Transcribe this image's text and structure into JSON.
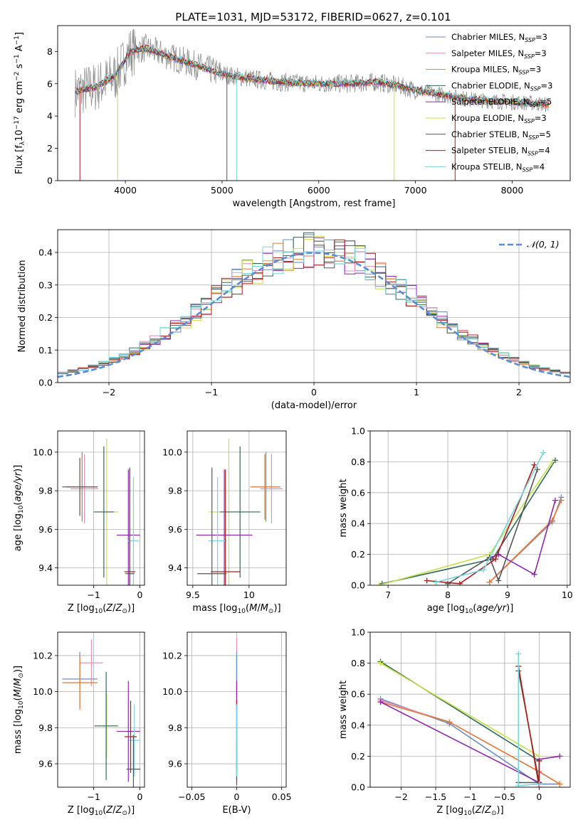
{
  "figure_title": "PLATE=1031, MJD=53172, FIBERID=0627, z=0.101",
  "colors": {
    "chabrier_miles": "#6c8ebf",
    "salpeter_miles": "#e58fb8",
    "kroupa_miles": "#e07b39",
    "chabrier_elodie": "#2f6b5a",
    "salpeter_elodie": "#8e2aa8",
    "kroupa_elodie": "#c6e04a",
    "chabrier_stelib": "#555555",
    "salpeter_stelib": "#b01c1c",
    "kroupa_stelib": "#76d6dd",
    "normal_curve": "#5b8bd6",
    "grid": "#b0b0b0"
  },
  "legend_spectrum": [
    {
      "name": "Chabrier MILES",
      "nssp": "3",
      "color_key": "chabrier_miles"
    },
    {
      "name": "Salpeter MILES",
      "nssp": "3",
      "color_key": "salpeter_miles"
    },
    {
      "name": "Kroupa MILES",
      "nssp": "3",
      "color_key": "kroupa_miles"
    },
    {
      "name": "Chabrier ELODIE",
      "nssp": "3",
      "color_key": "chabrier_elodie"
    },
    {
      "name": "Salpeter ELODIE",
      "nssp": "5",
      "color_key": "salpeter_elodie"
    },
    {
      "name": "Kroupa ELODIE",
      "nssp": "3",
      "color_key": "kroupa_elodie"
    },
    {
      "name": "Chabrier STELIB",
      "nssp": "5",
      "color_key": "chabrier_stelib"
    },
    {
      "name": "Salpeter STELIB",
      "nssp": "4",
      "color_key": "salpeter_stelib"
    },
    {
      "name": "Kroupa STELIB",
      "nssp": "4",
      "color_key": "kroupa_stelib"
    }
  ],
  "legend_residual": {
    "label": "𝒩(0, 1)"
  },
  "chart_data": [
    {
      "id": "spectrum",
      "type": "line",
      "title": "PLATE=1031, MJD=53172, FIBERID=0627, z=0.101",
      "xlabel": "wavelength [Angstrom, rest frame]",
      "ylabel": "Flux [f",
      "xlim": [
        3300,
        8600
      ],
      "ylim": [
        0,
        9.6
      ],
      "xticks": [
        4000,
        5000,
        6000,
        7000,
        8000
      ],
      "yticks": [
        0,
        2,
        4,
        6,
        8
      ],
      "data_range": [
        3480,
        8380
      ],
      "continuum_anchor_x": [
        3480,
        3700,
        3900,
        4050,
        4200,
        4400,
        4600,
        4800,
        5000,
        5300,
        5600,
        6000,
        6300,
        6600,
        6800,
        7000,
        7300,
        7600,
        7900,
        8200,
        8380
      ],
      "continuum_anchor_y": [
        5.5,
        5.8,
        6.5,
        8.0,
        8.2,
        7.8,
        7.4,
        7.0,
        6.6,
        6.3,
        6.1,
        6.0,
        6.0,
        6.1,
        5.9,
        5.6,
        5.3,
        5.0,
        4.9,
        4.8,
        4.7
      ]
    },
    {
      "id": "residuals",
      "type": "histogram",
      "xlabel": "(data-model)/error",
      "ylabel": "Normed distribution",
      "xlim": [
        -2.5,
        2.5
      ],
      "ylim": [
        0,
        0.47
      ],
      "xticks": [
        -2,
        -1,
        0,
        1,
        2
      ],
      "yticks": [
        0.0,
        0.1,
        0.2,
        0.3,
        0.4
      ],
      "bin_width": 0.1,
      "curve": "normal(0,1)"
    },
    {
      "id": "age_vs_Z",
      "type": "errorbar",
      "xlabel": "Z [log",
      "ylabel": "age  [log",
      "xlim": [
        -1.78,
        0.1
      ],
      "ylim": [
        9.31,
        10.11
      ],
      "xticks": [
        -1,
        0
      ],
      "yticks": [
        9.4,
        9.6,
        9.8,
        10.0
      ],
      "points": [
        {
          "c": "chabrier_miles",
          "x": -1.25,
          "xe": 0.34,
          "y": 9.82,
          "ye": 0.18
        },
        {
          "c": "salpeter_miles",
          "x": -1.2,
          "xe": 0.3,
          "y": 9.81,
          "ye": 0.18
        },
        {
          "c": "kroupa_miles",
          "x": -1.25,
          "xe": 0.34,
          "y": 9.82,
          "ye": 0.17
        },
        {
          "c": "chabrier_stelib",
          "x": -1.3,
          "xe": 0.38,
          "y": 9.82,
          "ye": 0.15
        },
        {
          "c": "kroupa_elodie",
          "x": -0.72,
          "xe": 0.25,
          "y": 9.69,
          "ye": 0.38
        },
        {
          "c": "chabrier_elodie",
          "x": -0.78,
          "xe": 0.22,
          "y": 9.69,
          "ye": 0.34
        },
        {
          "c": "salpeter_elodie",
          "x": -0.25,
          "xe": 0.25,
          "y": 9.57,
          "ye": 0.34
        },
        {
          "c": "kroupa_stelib",
          "x": -0.14,
          "xe": 0.12,
          "y": 9.54,
          "ye": 0.33
        },
        {
          "c": "salpeter_stelib",
          "x": -0.22,
          "xe": 0.12,
          "y": 9.38,
          "ye": 0.53
        },
        {
          "c": "chabrier_stelib",
          "x": -0.22,
          "xe": 0.1,
          "y": 9.37,
          "ye": 0.55
        }
      ]
    },
    {
      "id": "age_vs_mass",
      "type": "errorbar",
      "xlabel": "mass [log",
      "ylabel": "",
      "xlim": [
        9.45,
        10.33
      ],
      "ylim": [
        9.31,
        10.11
      ],
      "xticks": [
        9.5,
        10.0
      ],
      "yticks": [
        9.4,
        9.6,
        9.8,
        10.0
      ],
      "points": [
        {
          "c": "chabrier_miles",
          "x": 10.15,
          "xe": 0.13,
          "y": 9.82,
          "ye": 0.18
        },
        {
          "c": "salpeter_miles",
          "x": 10.2,
          "xe": 0.1,
          "y": 9.81,
          "ye": 0.18
        },
        {
          "c": "kroupa_miles",
          "x": 10.14,
          "xe": 0.13,
          "y": 9.82,
          "ye": 0.17
        },
        {
          "c": "kroupa_elodie",
          "x": 9.82,
          "xe": 0.18,
          "y": 9.69,
          "ye": 0.38
        },
        {
          "c": "chabrier_elodie",
          "x": 9.92,
          "xe": 0.18,
          "y": 9.69,
          "ye": 0.34
        },
        {
          "c": "salpeter_elodie",
          "x": 9.78,
          "xe": 0.25,
          "y": 9.57,
          "ye": 0.34
        },
        {
          "c": "kroupa_stelib",
          "x": 9.72,
          "xe": 0.08,
          "y": 9.54,
          "ye": 0.33
        },
        {
          "c": "salpeter_stelib",
          "x": 9.79,
          "xe": 0.13,
          "y": 9.38,
          "ye": 0.53
        },
        {
          "c": "chabrier_stelib",
          "x": 9.67,
          "xe": 0.13,
          "y": 9.37,
          "ye": 0.55
        }
      ]
    },
    {
      "id": "weight_vs_age",
      "type": "line",
      "xlabel": "age  [log",
      "ylabel": "mass weight",
      "xlim": [
        6.7,
        10.05
      ],
      "ylim": [
        0,
        1.0
      ],
      "xticks": [
        7,
        8,
        9,
        10
      ],
      "yticks": [
        0.0,
        0.2,
        0.4,
        0.6,
        0.8,
        1.0
      ],
      "series": [
        {
          "c": "chabrier_miles",
          "x": [
            8.7,
            9.75,
            9.9
          ],
          "y": [
            0.02,
            0.41,
            0.57
          ]
        },
        {
          "c": "salpeter_miles",
          "x": [
            8.7,
            9.75,
            9.9
          ],
          "y": [
            0.02,
            0.42,
            0.55
          ]
        },
        {
          "c": "kroupa_miles",
          "x": [
            8.7,
            9.75,
            9.9
          ],
          "y": [
            0.02,
            0.42,
            0.55
          ]
        },
        {
          "c": "chabrier_elodie",
          "x": [
            6.9,
            8.75,
            9.8
          ],
          "y": [
            0.01,
            0.17,
            0.81
          ]
        },
        {
          "c": "salpeter_elodie",
          "x": [
            8.72,
            8.85,
            9.45,
            9.8
          ],
          "y": [
            0.18,
            0.2,
            0.07,
            0.55
          ]
        },
        {
          "c": "kroupa_elodie",
          "x": [
            6.85,
            8.7,
            9.75
          ],
          "y": [
            0.0,
            0.2,
            0.8
          ]
        },
        {
          "c": "chabrier_stelib",
          "x": [
            8.0,
            8.7,
            8.85,
            9.5
          ],
          "y": [
            0.01,
            0.18,
            0.03,
            0.75
          ]
        },
        {
          "c": "salpeter_stelib",
          "x": [
            7.65,
            8.2,
            8.8,
            9.45
          ],
          "y": [
            0.03,
            0.01,
            0.17,
            0.78
          ]
        },
        {
          "c": "kroupa_stelib",
          "x": [
            7.8,
            8.6,
            9.6
          ],
          "y": [
            0.02,
            0.1,
            0.86
          ]
        }
      ]
    },
    {
      "id": "mass_vs_Z",
      "type": "errorbar",
      "xlabel": "Z [log",
      "ylabel": "mass [log",
      "xlim": [
        -1.78,
        0.1
      ],
      "ylim": [
        9.47,
        10.33
      ],
      "xticks": [
        -1,
        0
      ],
      "yticks": [
        9.6,
        9.8,
        10.0,
        10.2
      ],
      "points": [
        {
          "c": "chabrier_miles",
          "x": -1.3,
          "xe": 0.38,
          "y": 10.07,
          "ye": 0.15
        },
        {
          "c": "salpeter_miles",
          "x": -1.05,
          "xe": 0.25,
          "y": 10.16,
          "ye": 0.13
        },
        {
          "c": "kroupa_miles",
          "x": -1.3,
          "xe": 0.38,
          "y": 10.05,
          "ye": 0.15
        },
        {
          "c": "kroupa_elodie",
          "x": -0.72,
          "xe": 0.27,
          "y": 9.81,
          "ye": 0.18
        },
        {
          "c": "chabrier_elodie",
          "x": -0.73,
          "xe": 0.25,
          "y": 9.81,
          "ye": 0.3
        },
        {
          "c": "salpeter_elodie",
          "x": -0.25,
          "xe": 0.25,
          "y": 9.78,
          "ye": 0.28
        },
        {
          "c": "kroupa_stelib",
          "x": -0.12,
          "xe": 0.12,
          "y": 9.73,
          "ye": 0.2
        },
        {
          "c": "salpeter_stelib",
          "x": -0.2,
          "xe": 0.13,
          "y": 9.75,
          "ye": 0.2
        },
        {
          "c": "chabrier_stelib",
          "x": -0.14,
          "xe": 0.15,
          "y": 9.57,
          "ye": 0.19
        }
      ]
    },
    {
      "id": "mass_vs_ebv",
      "type": "errorbar",
      "xlabel": "E(B-V)",
      "ylabel": "",
      "xlim": [
        -0.055,
        0.055
      ],
      "ylim": [
        9.47,
        10.33
      ],
      "xticks": [
        -0.05,
        0.0,
        0.05
      ],
      "yticks": [
        9.6,
        9.8,
        10.0,
        10.2
      ],
      "points": [
        {
          "c": "salpeter_miles",
          "x": 0,
          "xe": 0,
          "y": 10.1,
          "ye": 0.2
        },
        {
          "c": "kroupa_miles",
          "x": 0,
          "xe": 0,
          "y": 10.05,
          "ye": 0.15
        },
        {
          "c": "chabrier_miles",
          "x": 0,
          "xe": 0,
          "y": 10.07,
          "ye": 0.15
        },
        {
          "c": "kroupa_elodie",
          "x": 0,
          "xe": 0,
          "y": 9.81,
          "ye": 0.18
        },
        {
          "c": "salpeter_elodie",
          "x": 0,
          "xe": 0,
          "y": 9.78,
          "ye": 0.28
        },
        {
          "c": "salpeter_stelib",
          "x": 0,
          "xe": 0,
          "y": 9.75,
          "ye": 0.2
        },
        {
          "c": "chabrier_stelib",
          "x": 0,
          "xe": 0,
          "y": 9.6,
          "ye": 0.12
        },
        {
          "c": "kroupa_stelib",
          "x": 0,
          "xe": 0,
          "y": 9.73,
          "ye": 0.2
        }
      ]
    },
    {
      "id": "weight_vs_Z",
      "type": "line",
      "xlabel": "Z [log",
      "ylabel": "mass weight",
      "xlim": [
        -2.45,
        0.45
      ],
      "ylim": [
        0,
        1.0
      ],
      "xticks": [
        -2.0,
        -1.5,
        -1.0,
        -0.5,
        0.0
      ],
      "yticks": [
        0.0,
        0.2,
        0.4,
        0.6,
        0.8,
        1.0
      ],
      "series": [
        {
          "c": "chabrier_miles",
          "x": [
            -2.3,
            -1.3,
            0.0,
            0.3
          ],
          "y": [
            0.57,
            0.41,
            0.02,
            0.02
          ]
        },
        {
          "c": "salpeter_miles",
          "x": [
            -2.3,
            -1.3,
            0.0,
            0.3
          ],
          "y": [
            0.56,
            0.42,
            0.1,
            0.02
          ]
        },
        {
          "c": "kroupa_miles",
          "x": [
            -2.3,
            -1.3,
            0.0,
            0.3
          ],
          "y": [
            0.55,
            0.42,
            0.1,
            0.02
          ]
        },
        {
          "c": "chabrier_elodie",
          "x": [
            -2.3,
            0.0,
            0.0
          ],
          "y": [
            0.81,
            0.17,
            0.03
          ]
        },
        {
          "c": "salpeter_elodie",
          "x": [
            -2.3,
            0.0,
            0.0,
            0.3
          ],
          "y": [
            0.55,
            0.03,
            0.18,
            0.2
          ]
        },
        {
          "c": "kroupa_elodie",
          "x": [
            -2.3,
            0.0
          ],
          "y": [
            0.8,
            0.2
          ]
        },
        {
          "c": "chabrier_stelib",
          "x": [
            -0.3,
            0.0,
            -0.3
          ],
          "y": [
            0.03,
            0.03,
            0.75
          ]
        },
        {
          "c": "salpeter_stelib",
          "x": [
            -0.3,
            0.0,
            0.0
          ],
          "y": [
            0.78,
            0.0,
            0.17
          ]
        },
        {
          "c": "kroupa_stelib",
          "x": [
            -0.3,
            -0.3,
            0.0
          ],
          "y": [
            0.86,
            0.01,
            0.02
          ]
        }
      ]
    }
  ]
}
